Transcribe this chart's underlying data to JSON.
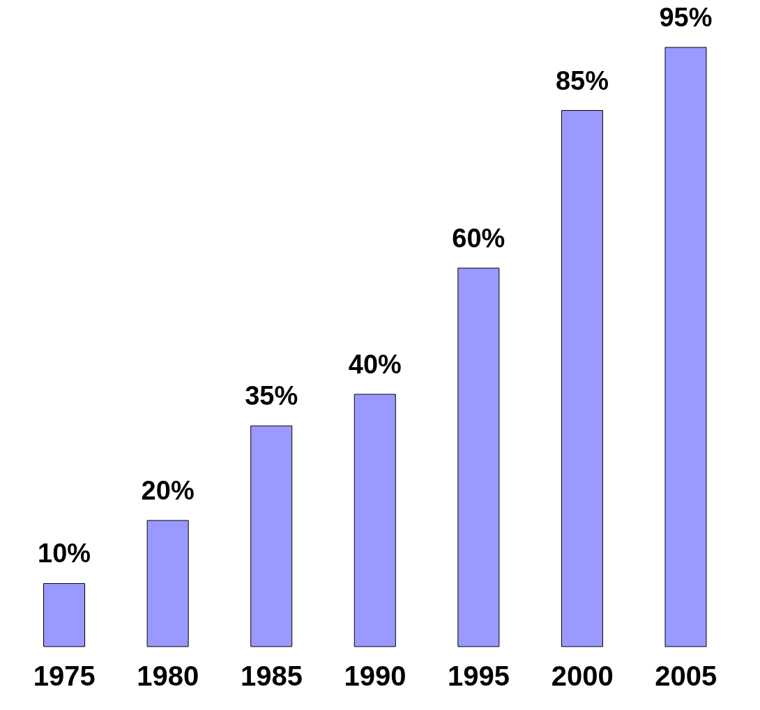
{
  "chart_data": {
    "type": "bar",
    "categories": [
      "1975",
      "1980",
      "1985",
      "1990",
      "1995",
      "2000",
      "2005"
    ],
    "values": [
      10,
      20,
      35,
      40,
      60,
      85,
      95
    ],
    "value_labels": [
      "10%",
      "20%",
      "35%",
      "40%",
      "60%",
      "85%",
      "95%"
    ],
    "color": "#9999ff"
  }
}
